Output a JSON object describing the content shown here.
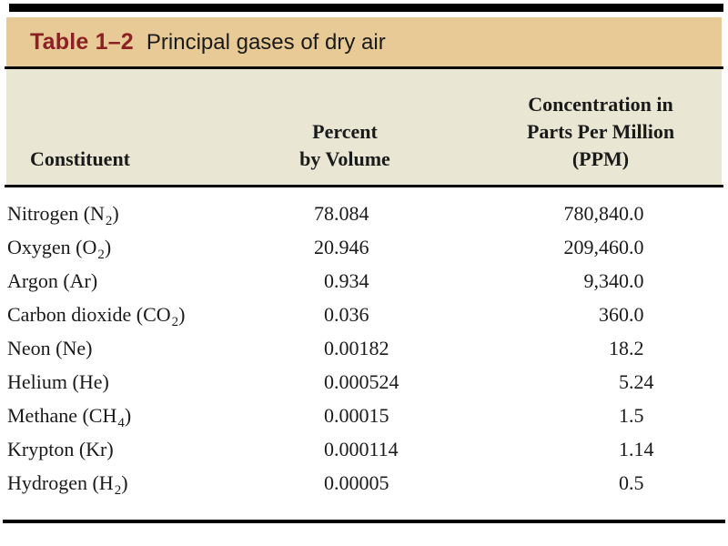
{
  "title_bar": {
    "label": "Table 1–2",
    "title": "Principal gases of dry air"
  },
  "table": {
    "columns": [
      {
        "label_lines": [
          "Constituent"
        ]
      },
      {
        "label_lines": [
          "Percent",
          "by Volume"
        ]
      },
      {
        "label_lines": [
          "Concentration in",
          "Parts Per Million",
          "(PPM)"
        ]
      }
    ],
    "rows": [
      {
        "name": "Nitrogen",
        "formula": "N",
        "formula_sub": "2",
        "percent": "78.084",
        "ppm": "780,840.0"
      },
      {
        "name": "Oxygen",
        "formula": "O",
        "formula_sub": "2",
        "percent": "20.946",
        "ppm": "209,460.0"
      },
      {
        "name": "Argon",
        "formula": "Ar",
        "formula_sub": "",
        "percent": "0.934",
        "ppm": "9,340.0"
      },
      {
        "name": "Carbon dioxide",
        "formula": "CO",
        "formula_sub": "2",
        "percent": "0.036",
        "ppm": "360.0"
      },
      {
        "name": "Neon",
        "formula": "Ne",
        "formula_sub": "",
        "percent": "0.00182",
        "ppm": "18.2"
      },
      {
        "name": "Helium",
        "formula": "He",
        "formula_sub": "",
        "percent": "0.000524",
        "ppm": "5.24"
      },
      {
        "name": "Methane",
        "formula": "CH",
        "formula_sub": "4",
        "percent": "0.00015",
        "ppm": "1.5"
      },
      {
        "name": "Krypton",
        "formula": "Kr",
        "formula_sub": "",
        "percent": "0.000114",
        "ppm": "1.14"
      },
      {
        "name": "Hydrogen",
        "formula": "H",
        "formula_sub": "2",
        "percent": "0.00005",
        "ppm": "0.5"
      }
    ]
  },
  "colors": {
    "page_bg": "#ffffff",
    "title_bar_bg": "#e8ca96",
    "title_label": "#8b2025",
    "header_bg": "#e9e7d4",
    "rule": "#000000",
    "text": "#1a1a1a"
  }
}
